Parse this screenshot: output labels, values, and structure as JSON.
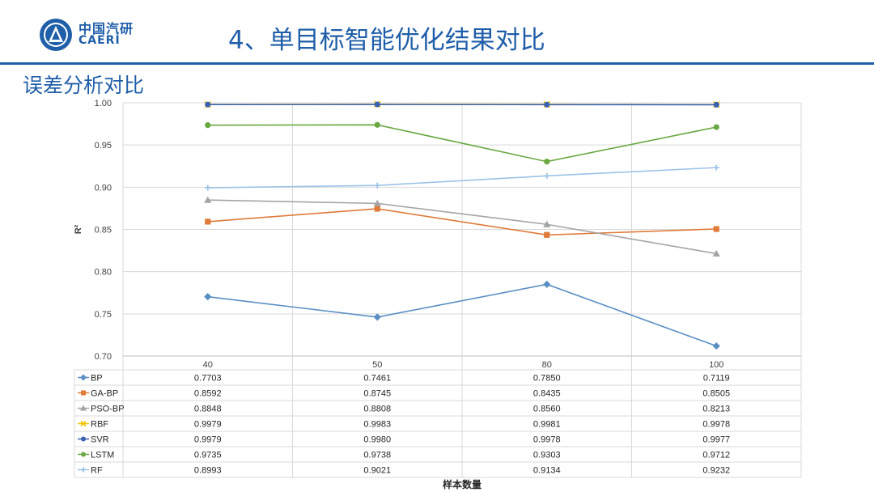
{
  "header": {
    "logo_cn": "中国汽研",
    "logo_en": "CAERI",
    "title": "4、单目标智能优化结果对比",
    "section": "误差分析对比"
  },
  "chart_data": {
    "type": "line",
    "title": "",
    "xlabel": "样本数量",
    "ylabel": "R²",
    "categories": [
      "40",
      "50",
      "80",
      "100"
    ],
    "ylim": [
      0.7,
      1.0
    ],
    "yticks": [
      "1.00",
      "0.95",
      "0.90",
      "0.85",
      "0.80",
      "0.75",
      "0.70"
    ],
    "grid": true,
    "legend": "data-table-below",
    "series": [
      {
        "name": "BP",
        "color": "#5a8fc3",
        "marker": "diamond",
        "values": [
          0.7703,
          0.7461,
          0.785,
          0.7119
        ],
        "labels": [
          "0.7703",
          "0.7461",
          "0.7850",
          "0.7119"
        ]
      },
      {
        "name": "GA-BP",
        "color": "#e07b39",
        "marker": "square",
        "values": [
          0.8592,
          0.8745,
          0.8435,
          0.8505
        ],
        "labels": [
          "0.8592",
          "0.8745",
          "0.8435",
          "0.8505"
        ]
      },
      {
        "name": "PSO-BP",
        "color": "#a5a5a5",
        "marker": "triangle",
        "values": [
          0.8848,
          0.8808,
          0.856,
          0.8213
        ],
        "labels": [
          "0.8848",
          "0.8808",
          "0.8560",
          "0.8213"
        ]
      },
      {
        "name": "RBF",
        "color": "#f2c500",
        "marker": "x",
        "values": [
          0.9979,
          0.9983,
          0.9981,
          0.9978
        ],
        "labels": [
          "0.9979",
          "0.9983",
          "0.9981",
          "0.9978"
        ]
      },
      {
        "name": "SVR",
        "color": "#3b62b0",
        "marker": "circle",
        "values": [
          0.9979,
          0.998,
          0.9978,
          0.9977
        ],
        "labels": [
          "0.9979",
          "0.9980",
          "0.9978",
          "0.9977"
        ]
      },
      {
        "name": "LSTM",
        "color": "#6aa842",
        "marker": "circle",
        "values": [
          0.9735,
          0.9738,
          0.9303,
          0.9712
        ],
        "labels": [
          "0.9735",
          "0.9738",
          "0.9303",
          "0.9712"
        ]
      },
      {
        "name": "RF",
        "color": "#9dc3e6",
        "marker": "plus",
        "values": [
          0.8993,
          0.9021,
          0.9134,
          0.9232
        ],
        "labels": [
          "0.8993",
          "0.9021",
          "0.9134",
          "0.9232"
        ]
      }
    ]
  }
}
